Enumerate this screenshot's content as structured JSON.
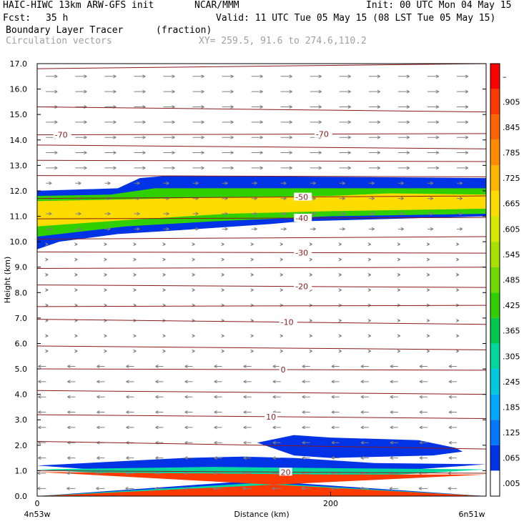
{
  "header": {
    "model": "HAIC-HIWC 13km ARW-GFS init",
    "org": "NCAR/MMM",
    "init": "Init: 00 UTC Mon 04 May 15",
    "fcst_label": "Fcst:",
    "fcst_value": "35 h",
    "valid": "Valid: 11 UTC Tue 05 May 15 (08 LST Tue 05 May 15)",
    "field1": "Boundary Layer Tracer",
    "field1_units": "(fraction)",
    "field2": "Circulation vectors",
    "xy": "XY= 259.5, 91.6 to 274.6,110.2"
  },
  "colors": {
    "background": "#ffffff",
    "contour": "#8b1a1a",
    "vector": "#808080",
    "frame": "#000000"
  },
  "chart_data": {
    "type": "heatmap",
    "xlabel": "Distance (km)",
    "ylabel": "Height (km)",
    "xlim": [
      0,
      306
    ],
    "ylim": [
      0,
      17
    ],
    "x_ticks": [
      {
        "v": 0,
        "label": "0"
      },
      {
        "v": 200,
        "label": "200"
      }
    ],
    "x_end_labels": [
      "4n53w",
      "6n51w"
    ],
    "y_ticks": [
      "0.0",
      "1.0",
      "2.0",
      "3.0",
      "4.0",
      "5.0",
      "6.0",
      "7.0",
      "8.0",
      "9.0",
      "10.0",
      "11.0",
      "12.0",
      "13.0",
      "14.0",
      "15.0",
      "16.0",
      "17.0"
    ],
    "colorbar": {
      "labels": [
        "–",
        ".905",
        ".845",
        ".785",
        ".725",
        ".665",
        ".605",
        ".545",
        ".485",
        ".425",
        ".365",
        ".305",
        ".245",
        ".185",
        ".125",
        ".065",
        ".005"
      ],
      "colors": [
        "#ff0000",
        "#ff3a00",
        "#ff6400",
        "#ff8c00",
        "#ffb400",
        "#ffdc00",
        "#d4e800",
        "#a8e000",
        "#6ed800",
        "#30d000",
        "#00c850",
        "#00d8a0",
        "#00c8e0",
        "#00a8ff",
        "#0078ff",
        "#0032e6",
        "#ffffff"
      ]
    },
    "isotherms": [
      {
        "label": "-70",
        "y0": 14.2,
        "y1": 14.25
      },
      {
        "label": "-50",
        "y0": 11.7,
        "y1": 11.8
      },
      {
        "label": "-40",
        "y0": 10.9,
        "y1": 10.95
      },
      {
        "label": "-30",
        "y0": 9.6,
        "y1": 9.55
      },
      {
        "label": "-20",
        "y0": 8.3,
        "y1": 8.2
      },
      {
        "label": "-10",
        "y0": 6.95,
        "y1": 6.75
      },
      {
        "label": "0",
        "y0": 5.0,
        "y1": 4.95
      },
      {
        "label": "10",
        "y0": 3.2,
        "y1": 3.05
      },
      {
        "label": "20",
        "y0": 1.0,
        "y1": 0.9
      }
    ],
    "unlabeled_isotherms": [
      {
        "y0": 16.8,
        "y1": 17.0
      },
      {
        "y0": 15.3,
        "y1": 15.1
      },
      {
        "y0": 13.8,
        "y1": 13.65
      },
      {
        "y0": 13.2,
        "y1": 13.15
      },
      {
        "y0": 12.6,
        "y1": 12.55
      },
      {
        "y0": 10.1,
        "y1": 10.2
      },
      {
        "y0": 8.95,
        "y1": 9.0
      },
      {
        "y0": 7.45,
        "y1": 7.5
      },
      {
        "y0": 5.9,
        "y1": 5.75
      },
      {
        "y0": 4.15,
        "y1": 4.0
      },
      {
        "y0": 2.15,
        "y1": 1.85
      }
    ],
    "tracer_regions": [
      {
        "name": "upper-layer-outer",
        "level": ".065",
        "top": [
          [
            0,
            12.0
          ],
          [
            55,
            12.1
          ],
          [
            70,
            12.5
          ],
          [
            90,
            12.6
          ],
          [
            306,
            12.5
          ]
        ],
        "bottom": [
          [
            0,
            9.7
          ],
          [
            15,
            10.0
          ],
          [
            55,
            10.3
          ],
          [
            110,
            10.5
          ],
          [
            160,
            10.7
          ],
          [
            180,
            10.8
          ],
          [
            306,
            11.0
          ]
        ]
      },
      {
        "name": "upper-layer-mid",
        "level": ".425",
        "top": [
          [
            0,
            11.8
          ],
          [
            50,
            11.85
          ],
          [
            80,
            12.1
          ],
          [
            306,
            12.1
          ]
        ],
        "bottom": [
          [
            0,
            10.2
          ],
          [
            60,
            10.6
          ],
          [
            120,
            10.8
          ],
          [
            200,
            11.0
          ],
          [
            306,
            11.1
          ]
        ]
      },
      {
        "name": "upper-layer-core",
        "level": ".665",
        "top": [
          [
            0,
            11.6
          ],
          [
            50,
            11.65
          ],
          [
            130,
            11.75
          ],
          [
            200,
            11.8
          ],
          [
            240,
            11.9
          ],
          [
            306,
            11.85
          ]
        ],
        "bottom": [
          [
            0,
            10.6
          ],
          [
            60,
            10.85
          ],
          [
            130,
            11.1
          ],
          [
            200,
            11.2
          ],
          [
            306,
            11.3
          ]
        ]
      },
      {
        "name": "lower-tongue",
        "level": ".065",
        "top": [
          [
            150,
            2.1
          ],
          [
            175,
            2.4
          ],
          [
            200,
            2.3
          ],
          [
            260,
            2.2
          ],
          [
            285,
            1.9
          ],
          [
            290,
            1.75
          ]
        ],
        "bottom": [
          [
            290,
            1.75
          ],
          [
            270,
            1.6
          ],
          [
            200,
            1.5
          ],
          [
            175,
            1.6
          ],
          [
            150,
            2.1
          ]
        ]
      },
      {
        "name": "boundary-layer-outer",
        "level": ".065",
        "top": [
          [
            0,
            1.2
          ],
          [
            100,
            1.5
          ],
          [
            140,
            1.55
          ],
          [
            175,
            1.5
          ],
          [
            230,
            1.3
          ],
          [
            306,
            1.25
          ]
        ],
        "bottom": [
          [
            306,
            0
          ],
          [
            0,
            0
          ]
        ]
      },
      {
        "name": "boundary-layer-mid",
        "level": ".305",
        "top": [
          [
            0,
            1.05
          ],
          [
            120,
            1.15
          ],
          [
            200,
            1.1
          ],
          [
            306,
            1.05
          ]
        ],
        "bottom": [
          [
            306,
            0
          ],
          [
            0,
            0
          ]
        ]
      },
      {
        "name": "boundary-layer-core",
        "level": ".905",
        "top": [
          [
            0,
            0.95
          ],
          [
            100,
            0.9
          ],
          [
            200,
            0.85
          ],
          [
            306,
            0.85
          ]
        ],
        "bottom": [
          [
            306,
            0
          ],
          [
            0,
            0
          ]
        ]
      }
    ]
  }
}
